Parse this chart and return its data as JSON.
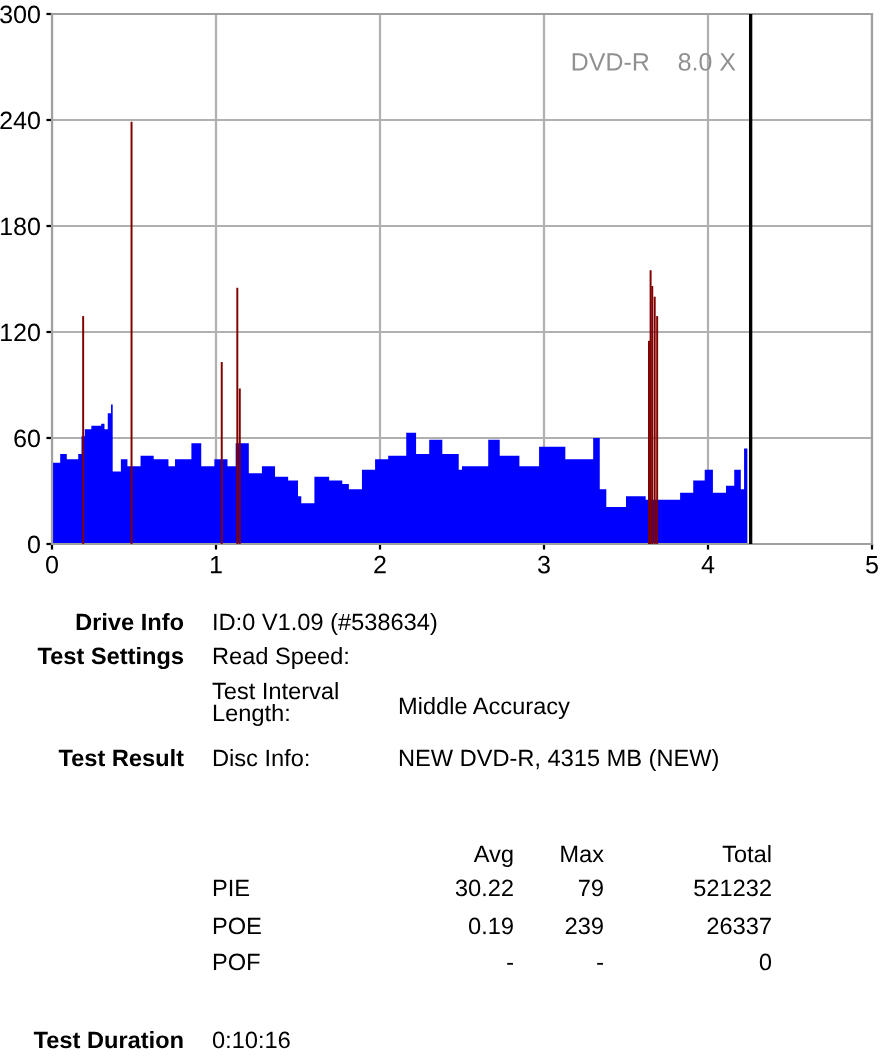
{
  "chart_data": {
    "type": "area",
    "x": [
      0,
      0.05,
      0.09,
      0.16,
      0.18,
      0.2,
      0.24,
      0.28,
      0.3,
      0.32,
      0.34,
      0.36,
      0.37,
      0.42,
      0.46,
      0.54,
      0.62,
      0.71,
      0.75,
      0.85,
      0.91,
      0.99,
      1.07,
      1.12,
      1.2,
      1.28,
      1.36,
      1.44,
      1.5,
      1.52,
      1.6,
      1.69,
      1.77,
      1.81,
      1.89,
      1.97,
      2.05,
      2.16,
      2.22,
      2.3,
      2.38,
      2.48,
      2.5,
      2.66,
      2.73,
      2.85,
      2.97,
      3.13,
      3.3,
      3.34,
      3.38,
      3.5,
      3.62,
      3.72,
      3.83,
      3.91,
      3.98,
      4.03,
      4.11,
      4.16,
      4.2,
      4.22,
      4.24
    ],
    "series": [
      {
        "color": "#0000ff",
        "values": [
          46,
          51,
          48,
          51,
          61,
          65,
          67,
          67,
          68,
          65,
          74,
          79,
          41,
          48,
          44,
          50,
          48,
          44,
          48,
          57,
          44,
          48,
          44,
          57,
          40,
          44,
          38,
          36,
          27,
          23,
          38,
          36,
          34,
          31,
          42,
          48,
          50,
          63,
          51,
          59,
          51,
          42,
          44,
          59,
          50,
          44,
          55,
          48,
          60,
          31,
          21,
          27,
          25,
          25,
          29,
          36,
          42,
          29,
          33,
          42,
          31,
          54,
          51
        ]
      },
      {
        "type": "bar",
        "color": "#800000",
        "x": [
          0.19,
          0.485,
          1.035,
          1.13,
          1.145,
          3.64,
          3.65,
          3.66,
          3.675,
          3.69
        ],
        "values": [
          129,
          239,
          103,
          145,
          88,
          115,
          155,
          146,
          140,
          129
        ]
      }
    ],
    "xlim": [
      0,
      5
    ],
    "xticks": [
      0,
      1,
      2,
      3,
      4,
      5
    ],
    "ylim": [
      0,
      300
    ],
    "yticks": [
      0,
      60,
      120,
      180,
      240,
      300
    ],
    "grid": true,
    "ref_lines": [
      {
        "axis": "x",
        "value": 4.26,
        "color": "#000000"
      }
    ],
    "annotations": [
      "DVD-R    8.0 X",
      "Drive Info",
      "ID:0 V1.09 (#538634)",
      "Test Settings",
      "Read Speed:",
      "Test Interval\nLength:",
      "Middle Accuracy",
      "Test Result",
      "Disc Info:",
      "NEW DVD-R, 4315 MB (NEW)",
      "Avg",
      "Max",
      "Total",
      "PIE",
      "30.22",
      "79",
      "521232",
      "POE",
      "0.19",
      "239",
      "26337",
      "POF",
      "-",
      "-",
      "0",
      "Test Duration",
      "0:10:16"
    ]
  }
}
